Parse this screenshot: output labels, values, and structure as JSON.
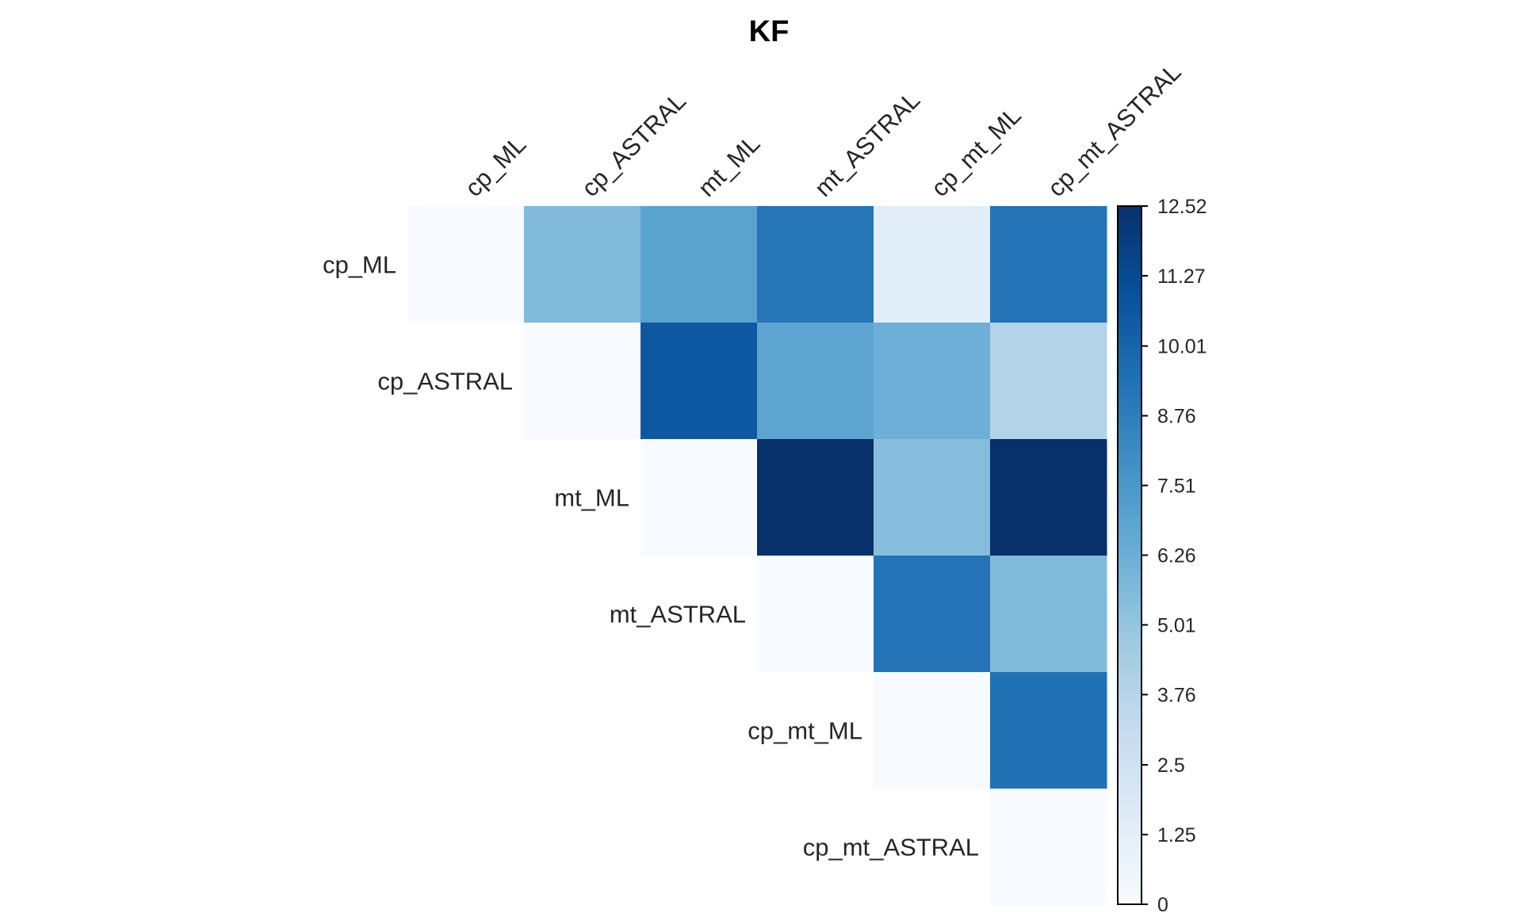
{
  "chart_data": {
    "type": "heatmap",
    "title": "KF",
    "xlabel": "",
    "ylabel": "",
    "layout": "upper-triangle",
    "rows": [
      "cp_ML",
      "cp_ASTRAL",
      "mt_ML",
      "mt_ASTRAL",
      "cp_mt_ML",
      "cp_mt_ASTRAL"
    ],
    "columns": [
      "cp_ML",
      "cp_ASTRAL",
      "mt_ML",
      "mt_ASTRAL",
      "cp_mt_ML",
      "cp_mt_ASTRAL"
    ],
    "values": [
      [
        0,
        5.6,
        6.9,
        9.2,
        1.4,
        9.3
      ],
      [
        null,
        0,
        10.6,
        6.8,
        6.2,
        3.9
      ],
      [
        null,
        null,
        0,
        12.52,
        5.4,
        12.52
      ],
      [
        null,
        null,
        null,
        0,
        9.3,
        5.6
      ],
      [
        null,
        null,
        null,
        null,
        0,
        9.4
      ],
      [
        null,
        null,
        null,
        null,
        null,
        0
      ]
    ],
    "colorscale": {
      "name": "Blues",
      "min": 0,
      "max": 12.52,
      "ticks": [
        "0",
        "1.25",
        "2.5",
        "3.76",
        "5.01",
        "6.26",
        "7.51",
        "8.76",
        "10.01",
        "11.27",
        "12.52"
      ]
    },
    "legend_position": "right"
  }
}
